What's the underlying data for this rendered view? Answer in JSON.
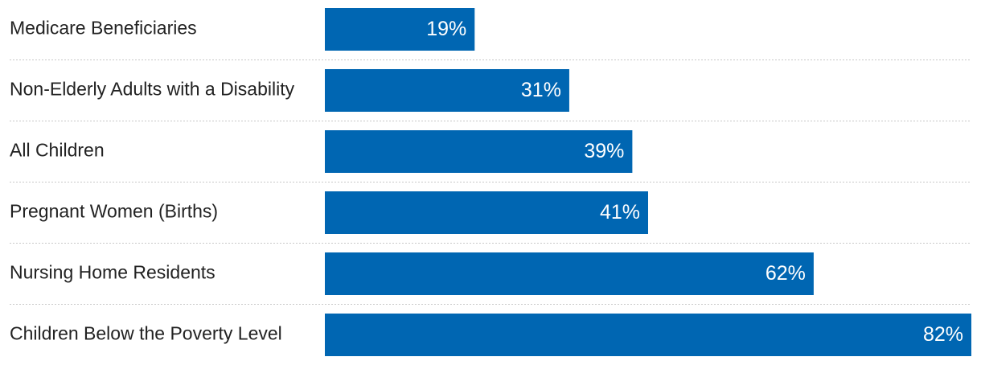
{
  "chart_data": {
    "type": "bar",
    "orientation": "horizontal",
    "categories": [
      "Medicare Beneficiaries",
      "Non-Elderly Adults with a Disability",
      "All Children",
      "Pregnant Women (Births)",
      "Nursing Home Residents",
      "Children Below the Poverty Level"
    ],
    "values": [
      19,
      31,
      39,
      41,
      62,
      82
    ],
    "value_labels": [
      "19%",
      "31%",
      "39%",
      "41%",
      "62%",
      "82%"
    ],
    "unit": "%",
    "xlim": [
      0,
      82
    ],
    "grid": false,
    "bar_color": "#0066b2",
    "label_color": "#ffffff",
    "divider_color": "#c8c8c8"
  }
}
